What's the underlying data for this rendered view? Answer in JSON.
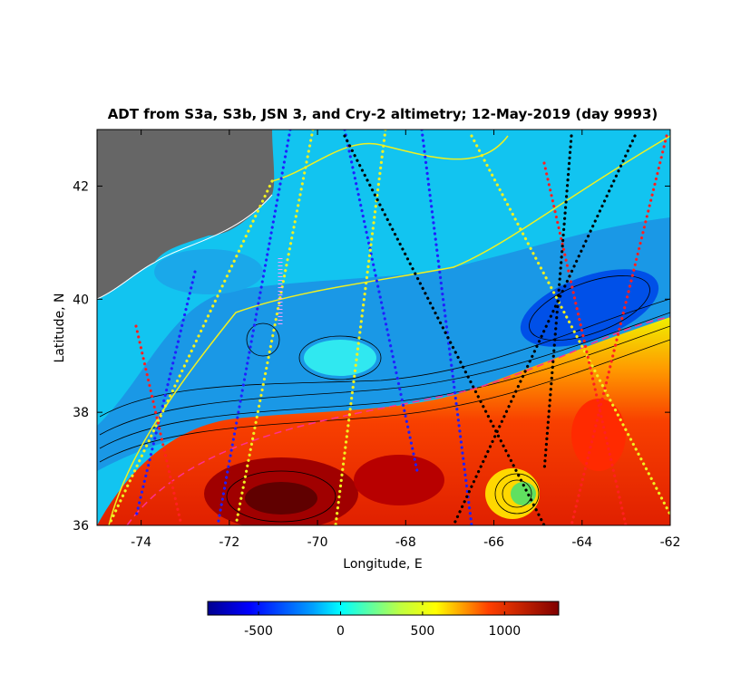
{
  "chart_data": {
    "type": "contour-map",
    "title": "ADT from S3a, S3b, JSN 3, and Cry-2 altimetry; 12-May-2019 (day 9993)",
    "xlabel": "Longitude, E",
    "ylabel": "Latitude, N",
    "xlim": [
      -75,
      -62
    ],
    "xticks": [
      -74,
      -72,
      -70,
      -68,
      -66,
      -64,
      -62
    ],
    "ylim": [
      36,
      43
    ],
    "yticks": [
      36,
      38,
      40,
      42
    ],
    "colorbar": {
      "colormap": "jet",
      "clim": [
        -810,
        1330
      ],
      "ticks": [
        -500,
        0,
        500,
        1000
      ]
    }
  }
}
